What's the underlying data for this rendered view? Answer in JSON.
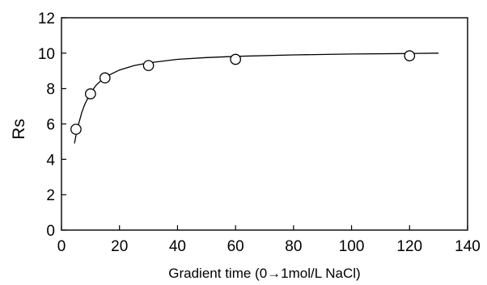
{
  "chart_data": {
    "type": "scatter",
    "title": "",
    "xlabel": "Gradient time (0→1mol/L NaCl)",
    "ylabel": "Rs",
    "xlim": [
      0,
      140
    ],
    "ylim": [
      0,
      12
    ],
    "xticks": [
      "0",
      "20",
      "40",
      "60",
      "80",
      "100",
      "120",
      "140"
    ],
    "yticks": [
      "0",
      "2",
      "4",
      "6",
      "8",
      "10",
      "12"
    ],
    "grid": false,
    "legend": "none",
    "series": [
      {
        "kind": "points",
        "marker": "open-circle",
        "x": [
          5,
          10,
          15,
          30,
          60,
          120
        ],
        "y": [
          5.7,
          7.7,
          8.6,
          9.3,
          9.65,
          9.85
        ]
      },
      {
        "kind": "fitted-curve",
        "x": [
          4.5,
          5,
          6,
          7,
          8,
          10,
          12,
          15,
          20,
          25,
          30,
          40,
          50,
          60,
          80,
          100,
          120,
          130
        ],
        "y": [
          4.9,
          5.35,
          6.05,
          6.65,
          7.1,
          7.75,
          8.2,
          8.65,
          9.05,
          9.3,
          9.45,
          9.65,
          9.75,
          9.82,
          9.9,
          9.95,
          9.98,
          10.0
        ]
      }
    ],
    "colors": {
      "stroke": "#000000",
      "background": "#ffffff"
    }
  }
}
